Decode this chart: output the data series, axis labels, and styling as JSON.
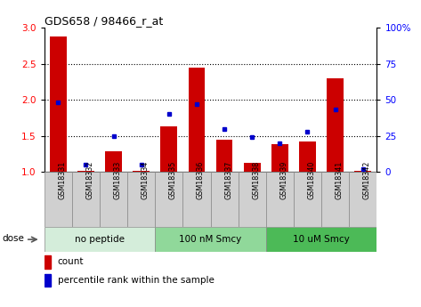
{
  "title": "GDS658 / 98466_r_at",
  "samples": [
    "GSM18331",
    "GSM18332",
    "GSM18333",
    "GSM18334",
    "GSM18335",
    "GSM18336",
    "GSM18337",
    "GSM18338",
    "GSM18339",
    "GSM18340",
    "GSM18341",
    "GSM18342"
  ],
  "count_values": [
    2.88,
    1.02,
    1.28,
    1.01,
    1.63,
    2.44,
    1.45,
    1.12,
    1.38,
    1.42,
    2.3,
    1.01
  ],
  "percentile_values": [
    48,
    5,
    25,
    5,
    40,
    47,
    30,
    24,
    20,
    28,
    43,
    2
  ],
  "groups": [
    {
      "label": "no peptide",
      "start": 0,
      "end": 4,
      "color": "#d4edda"
    },
    {
      "label": "100 nM Smcy",
      "start": 4,
      "end": 8,
      "color": "#90d89a"
    },
    {
      "label": "10 uM Smcy",
      "start": 8,
      "end": 12,
      "color": "#4cba57"
    }
  ],
  "ylim_left": [
    1.0,
    3.0
  ],
  "ylim_right": [
    0,
    100
  ],
  "yticks_left": [
    1.0,
    1.5,
    2.0,
    2.5,
    3.0
  ],
  "yticks_right": [
    0,
    25,
    50,
    75,
    100
  ],
  "bar_color": "#cc0000",
  "dot_color": "#0000cc",
  "bar_width": 0.6,
  "cell_bg": "#d0d0d0",
  "dose_label": "dose",
  "legend_count": "count",
  "legend_percentile": "percentile rank within the sample"
}
